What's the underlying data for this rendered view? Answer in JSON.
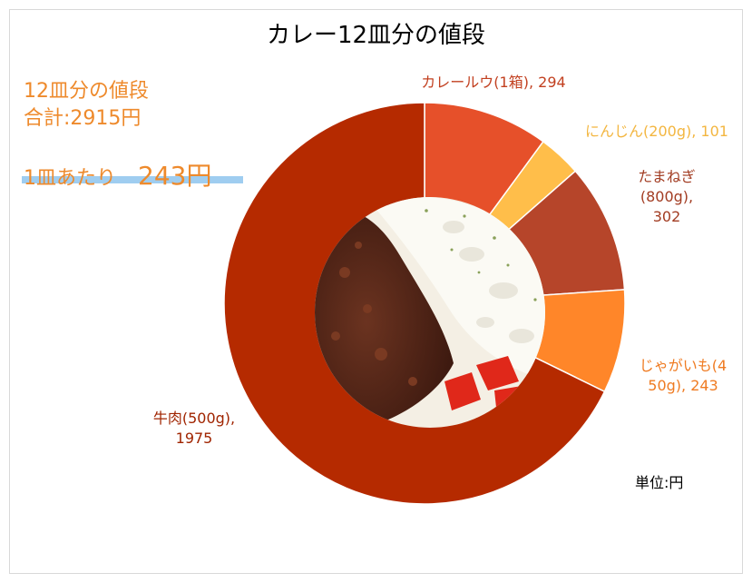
{
  "title": "カレー12皿分の値段",
  "summary": {
    "line1": "12皿分の値段",
    "line2": "合計:2915円",
    "per_label": "1皿あたり",
    "per_value": "243円"
  },
  "unit_note": "単位:円",
  "chart_data": {
    "type": "pie",
    "title": "カレー12皿分の値段",
    "categories": [
      "カレールウ(1箱)",
      "にんじん(200g)",
      "たまねぎ(800g)",
      "じゃがいも(450g)",
      "牛肉(500g)"
    ],
    "values": [
      294,
      101,
      302,
      243,
      1975
    ],
    "colors": [
      "#e6502a",
      "#ffbe4a",
      "#b6452a",
      "#ff8629",
      "#b52a00"
    ],
    "data_labels": [
      {
        "text": "カレールウ(1箱), 294",
        "color": "#c24020"
      },
      {
        "text": "にんじん(200g), 101",
        "color": "#f3b640"
      },
      {
        "text": "たまねぎ\n(800g),\n302",
        "color": "#a23c22"
      },
      {
        "text": "じゃがいも(4\n50g), 243",
        "color": "#ef7b22"
      },
      {
        "text": "牛肉(500g),\n1975",
        "color": "#a02400"
      }
    ],
    "center_image": "curry-rice-photo",
    "legend": "none"
  }
}
